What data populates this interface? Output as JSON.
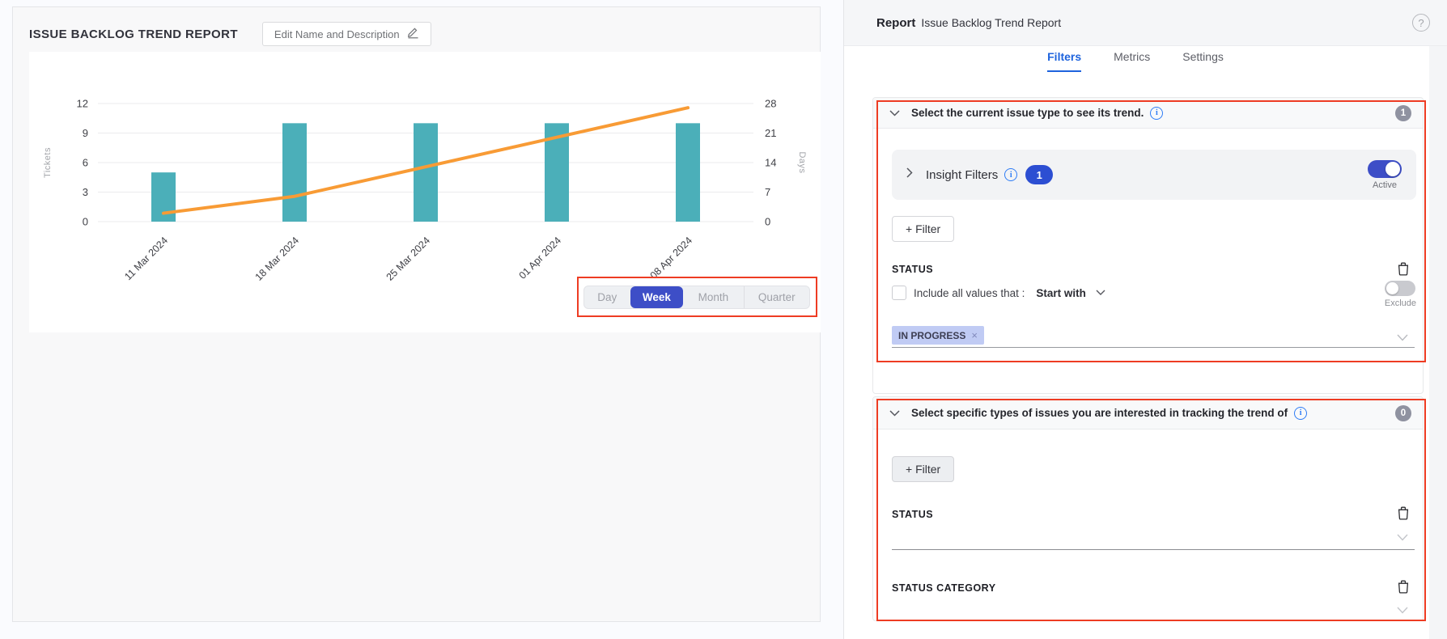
{
  "report": {
    "title": "ISSUE BACKLOG TREND REPORT",
    "edit_button": "Edit Name and Description"
  },
  "chart_data": {
    "type": "bar",
    "title": "Issue Backlog Trend",
    "categories": [
      "11 Mar 2024",
      "18 Mar 2024",
      "25 Mar 2024",
      "01 Apr 2024",
      "08 Apr 2024"
    ],
    "series": [
      {
        "name": "Tickets",
        "type": "bar",
        "axis": "left",
        "color": "#4bafb9",
        "values": [
          5,
          10,
          10,
          10,
          10
        ]
      },
      {
        "name": "Days",
        "type": "line",
        "axis": "right",
        "color": "#f89b35",
        "values": [
          2,
          6,
          13,
          20,
          27
        ]
      }
    ],
    "left_axis": {
      "label": "Tickets",
      "ticks": [
        0,
        3,
        6,
        9,
        12
      ],
      "range": [
        0,
        12
      ]
    },
    "right_axis": {
      "label": "Days",
      "ticks": [
        0,
        7,
        14,
        21,
        28
      ],
      "range": [
        0,
        28
      ]
    },
    "grid": true,
    "legend": "none"
  },
  "period_toggle": {
    "options": [
      "Day",
      "Week",
      "Month",
      "Quarter"
    ],
    "selected": "Week"
  },
  "panel": {
    "header_label": "Report",
    "header_value": "Issue Backlog Trend Report",
    "tabs": [
      {
        "label": "Filters",
        "active": true
      },
      {
        "label": "Metrics",
        "active": false
      },
      {
        "label": "Settings",
        "active": false
      }
    ],
    "sections": [
      {
        "title": "Select the current issue type to see its trend.",
        "badge": "1",
        "insight": {
          "label": "Insight Filters",
          "count": "1",
          "toggle_label": "Active",
          "toggle_on": true
        },
        "add_filter": "+ Filter",
        "status": {
          "label": "STATUS",
          "include_label": "Include all values that :",
          "operator": "Start with",
          "exclude_label": "Exclude",
          "chips": [
            "IN PROGRESS"
          ]
        }
      },
      {
        "title": "Select specific types of issues you are interested in tracking the trend of",
        "badge": "0",
        "add_filter": "+ Filter",
        "fields": [
          {
            "label": "STATUS"
          },
          {
            "label": "STATUS CATEGORY"
          }
        ]
      }
    ]
  },
  "colors": {
    "bar_teal": "#4bafb9",
    "line_orange": "#f89b35",
    "selected_indigo": "#3d4ec7",
    "annotation_red": "#ee3c23",
    "active_tab_blue": "#1e63dd",
    "chip_lavender": "#c0cbf4"
  }
}
